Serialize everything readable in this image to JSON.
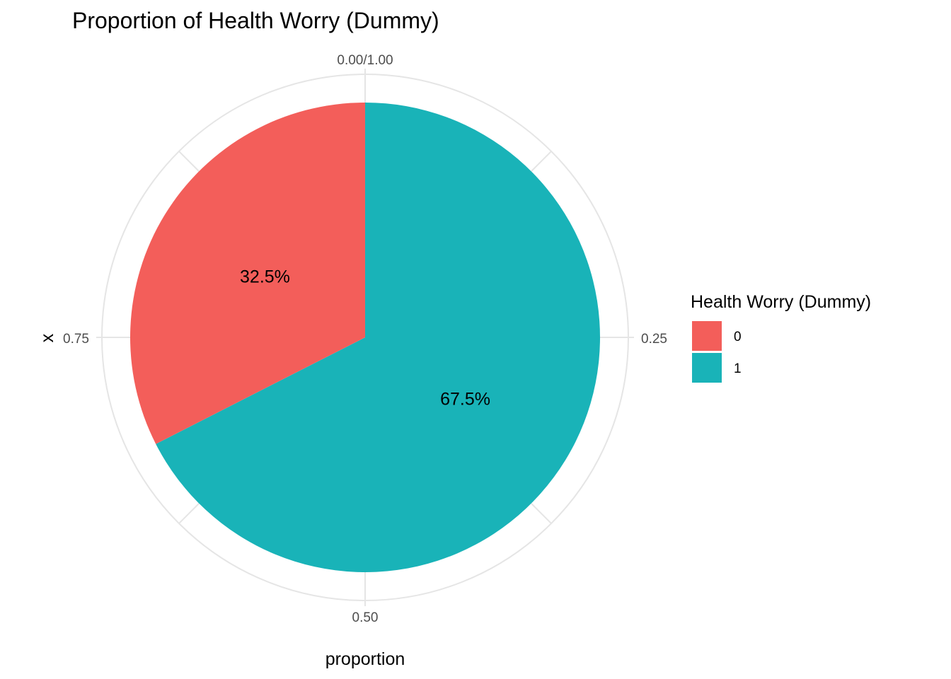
{
  "chart_data": {
    "type": "pie",
    "title": "Proportion of Health Worry (Dummy)",
    "xlabel": "proportion",
    "ylabel": "x",
    "theta_ticks": [
      {
        "value": 0,
        "label": "0.00/1.00"
      },
      {
        "value": 0.25,
        "label": "0.25"
      },
      {
        "value": 0.5,
        "label": "0.50"
      },
      {
        "value": 0.75,
        "label": "0.75"
      }
    ],
    "slices": [
      {
        "category": "0",
        "value": 0.325,
        "label": "32.5%",
        "color": "#F35E5A"
      },
      {
        "category": "1",
        "value": 0.675,
        "label": "67.5%",
        "color": "#19B3B8"
      }
    ],
    "legend": {
      "title": "Health Worry (Dummy)",
      "position": "right",
      "items": [
        {
          "label": "0",
          "color": "#F35E5A"
        },
        {
          "label": "1",
          "color": "#19B3B8"
        }
      ]
    },
    "grid": true,
    "grid_color": "#E5E5E5"
  }
}
